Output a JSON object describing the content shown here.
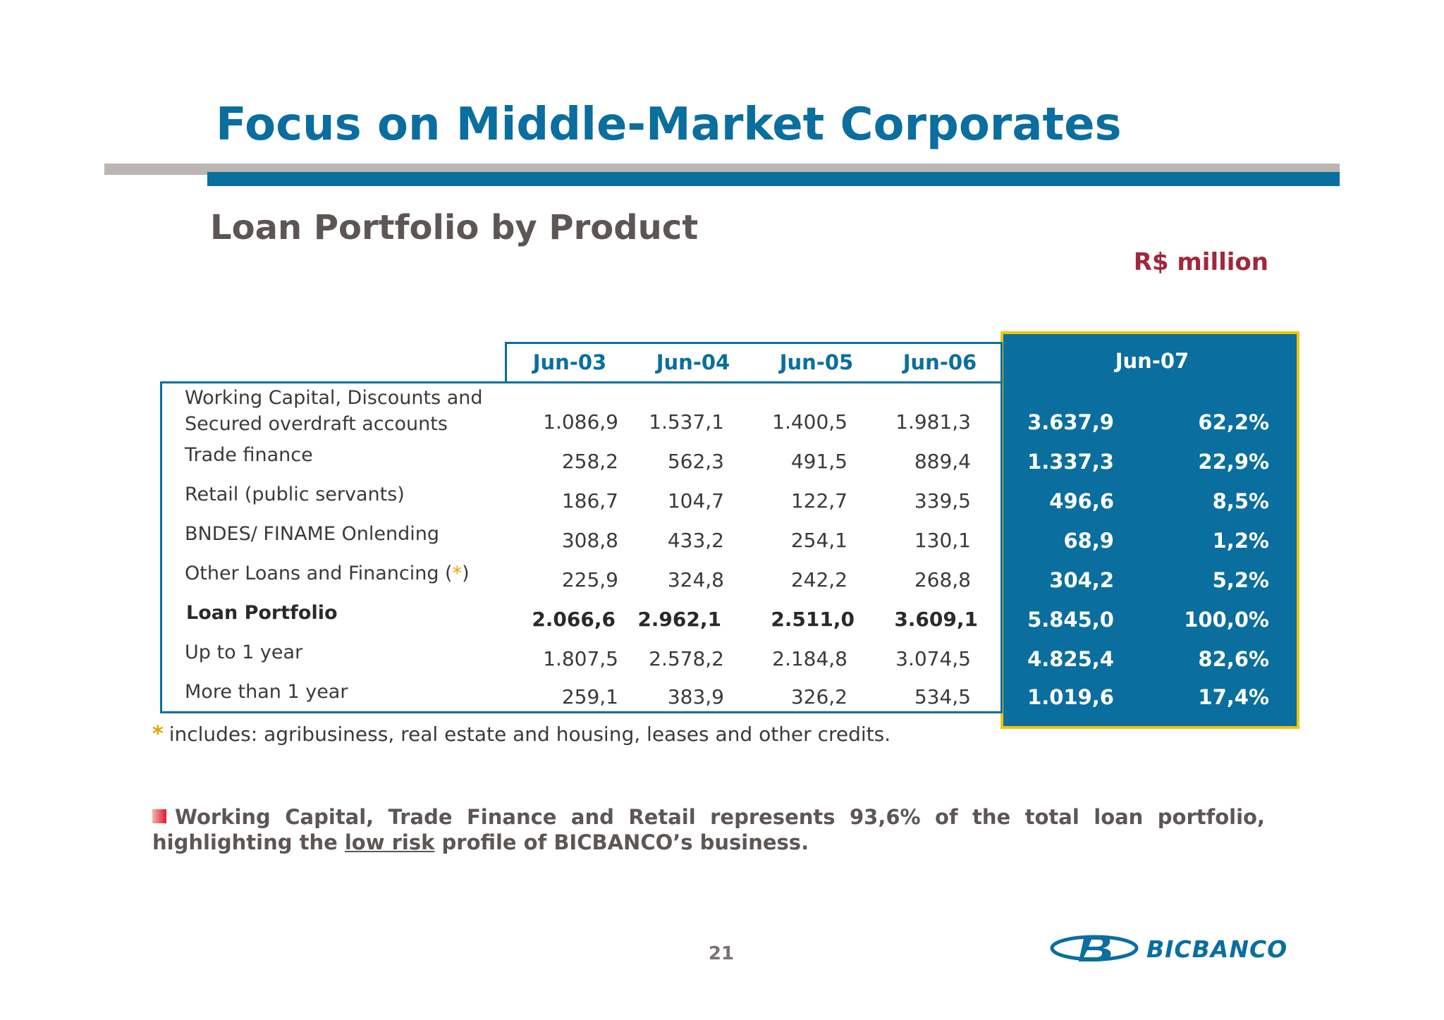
{
  "title": "Focus on Middle-Market Corporates",
  "subtitle": "Loan Portfolio by Product",
  "unit": "R$ million",
  "columns": [
    "Jun-03",
    "Jun-04",
    "Jun-05",
    "Jun-06",
    "Jun-07"
  ],
  "rows": [
    {
      "label_line1": "Working Capital, Discounts and",
      "label_line2": "Secured overdraft accounts",
      "values": [
        "1.086,9",
        "1.537,1",
        "1.400,5",
        "1.981,3",
        "3.637,9"
      ],
      "pct": "62,2%"
    },
    {
      "label": "Trade finance",
      "values": [
        "258,2",
        "562,3",
        "491,5",
        "889,4",
        "1.337,3"
      ],
      "pct": "22,9%"
    },
    {
      "label": "Retail (public servants)",
      "values": [
        "186,7",
        "104,7",
        "122,7",
        "339,5",
        "496,6"
      ],
      "pct": "8,5%"
    },
    {
      "label": "BNDES/ FINAME Onlending",
      "values": [
        "308,8",
        "433,2",
        "254,1",
        "130,1",
        "68,9"
      ],
      "pct": "1,2%"
    },
    {
      "label": "Other Loans and Financing (",
      "label_star": "*",
      "label_end": ")",
      "values": [
        "225,9",
        "324,8",
        "242,2",
        "268,8",
        "304,2"
      ],
      "pct": "5,2%"
    },
    {
      "label": "Loan Portfolio",
      "values": [
        "2.066,6",
        "2.962,1",
        "2.511,0",
        "3.609,1",
        "5.845,0"
      ],
      "pct": "100,0%"
    },
    {
      "label": "Up to 1 year",
      "values": [
        "1.807,5",
        "2.578,2",
        "2.184,8",
        "3.074,5",
        "4.825,4"
      ],
      "pct": "82,6%"
    },
    {
      "label": "More than 1 year",
      "values": [
        "259,1",
        "383,9",
        "326,2",
        "534,5",
        "1.019,6"
      ],
      "pct": "17,4%"
    }
  ],
  "footnote": {
    "star": "*",
    "text": "includes: agribusiness, real estate and housing, leases and other credits."
  },
  "bullet": {
    "part1": "Working Capital, Trade Finance and Retail represents 93,6% of the total loan portfolio, highlighting the ",
    "underlined": "low risk",
    "part2": " profile of BICBANCO’s business."
  },
  "page_number": "21",
  "logo_text": "BICBANCO",
  "colors": {
    "primary_blue": "#0a6e9f",
    "grey_text": "#5d5655",
    "red": "#a1273c",
    "accent_yellow": "#f2c500",
    "asterisk": "#e8a300"
  }
}
